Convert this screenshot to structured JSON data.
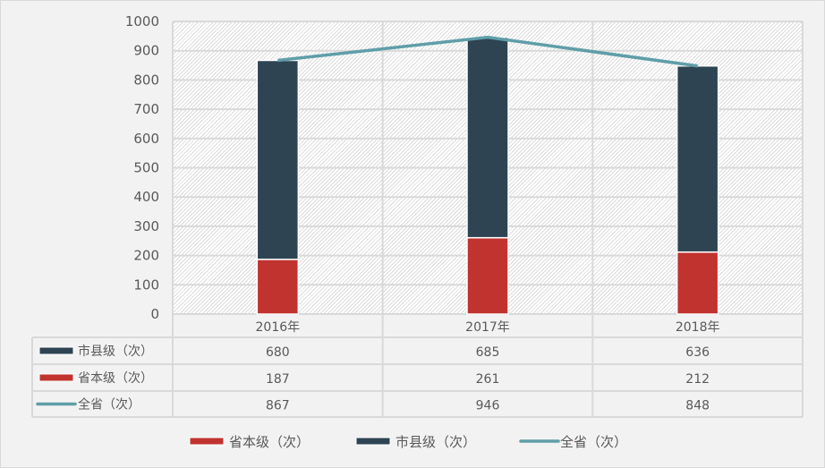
{
  "chart_data": {
    "type": "bar",
    "stacked": true,
    "categories": [
      "2016年",
      "2017年",
      "2018年"
    ],
    "series": [
      {
        "name": "省本级（次）",
        "kind": "bar",
        "color": "#c0332f",
        "values": [
          187,
          261,
          212
        ]
      },
      {
        "name": "市县级（次）",
        "kind": "bar",
        "color": "#2e4453",
        "values": [
          680,
          685,
          636
        ]
      },
      {
        "name": "全省（次）",
        "kind": "line",
        "color": "#5f9ea8",
        "values": [
          867,
          946,
          848
        ]
      }
    ],
    "table_rows": [
      {
        "name": "市县级（次）",
        "color": "#2e4453",
        "kind": "bar",
        "values": [
          "680",
          "685",
          "636"
        ]
      },
      {
        "name": "省本级（次）",
        "color": "#c0332f",
        "kind": "bar",
        "values": [
          "187",
          "261",
          "212"
        ]
      },
      {
        "name": "全省（次）",
        "color": "#5f9ea8",
        "kind": "line",
        "values": [
          "867",
          "946",
          "848"
        ]
      }
    ],
    "ylim": [
      0,
      1000
    ],
    "yticks": [
      0,
      100,
      200,
      300,
      400,
      500,
      600,
      700,
      800,
      900,
      1000
    ],
    "grid": true,
    "legend": "bottom",
    "legend_entries": [
      "省本级（次）",
      "市县级（次）",
      "全省（次）"
    ]
  }
}
